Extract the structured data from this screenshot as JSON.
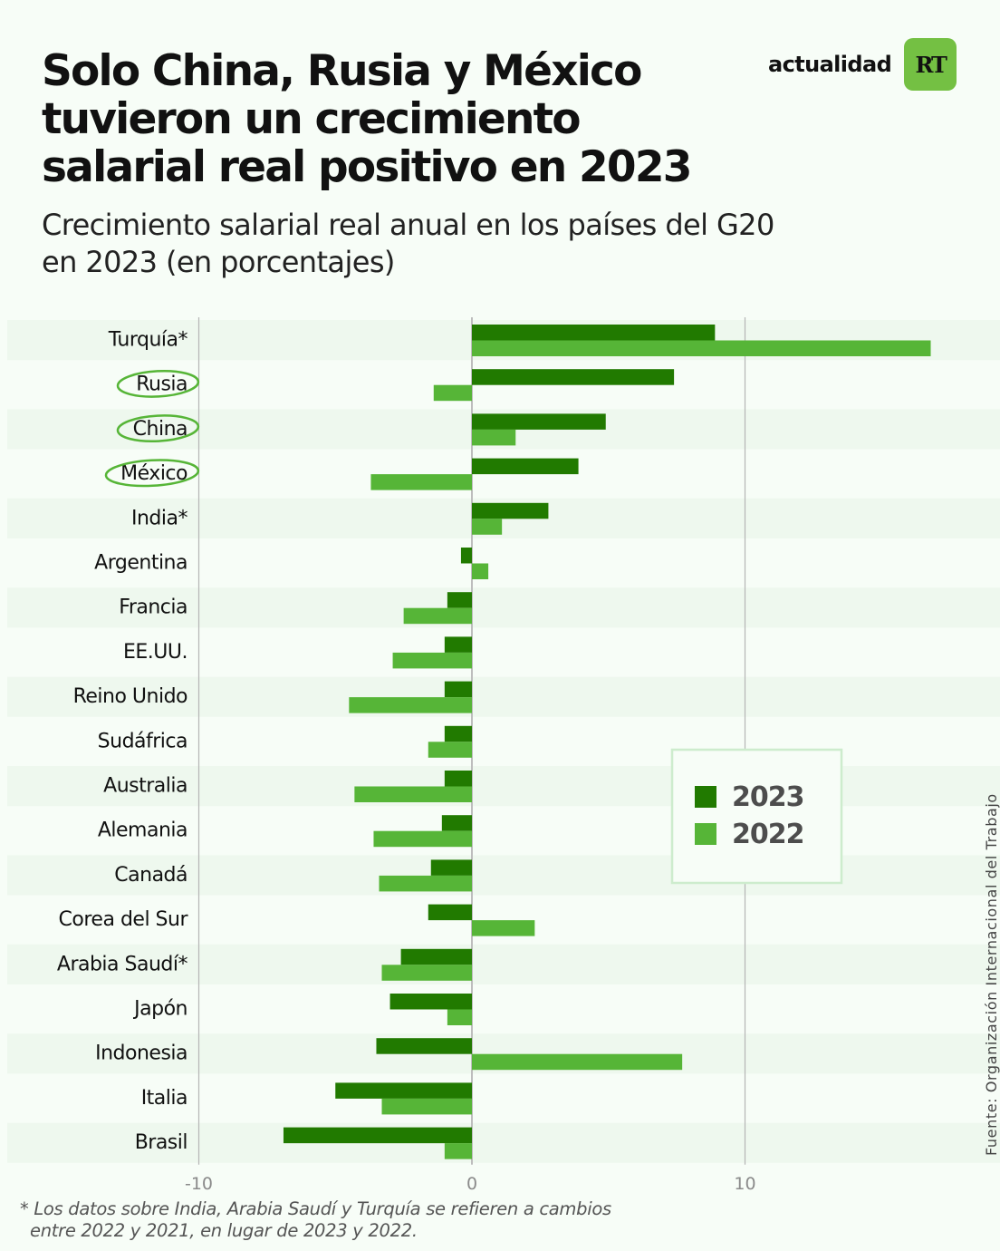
{
  "header": {
    "title": "Solo China, Rusia y México tuvieron un crecimiento salarial real positivo en 2023",
    "subtitle": "Crecimiento salarial real anual en los países del G20 en 2023 (en porcentajes)"
  },
  "brand": {
    "word": "actualidad",
    "logo_text": "RT",
    "logo_color": "#74c043"
  },
  "source": "Fuente: Organización Internacional del Trabajo",
  "footnote": {
    "line1": "* Los datos sobre India, Arabia Saudí y Turquía se refieren a cambios",
    "line2": "entre 2022 y 2021, en lugar de 2023 y 2022."
  },
  "chart_data": {
    "type": "bar",
    "orientation": "horizontal",
    "title": "Crecimiento salarial real anual en los países del G20 en 2023 (en porcentajes)",
    "xlabel": "",
    "ylabel": "",
    "xlim": [
      -10,
      17
    ],
    "xticks": [
      -10,
      0,
      10
    ],
    "xtick_labels": [
      "-10",
      "0",
      "10"
    ],
    "grid": true,
    "legend_position": "right",
    "categories": [
      "Turquía*",
      "Rusia",
      "China",
      "México",
      "India*",
      "Argentina",
      "Francia",
      "EE.UU.",
      "Reino Unido",
      "Sudáfrica",
      "Australia",
      "Alemania",
      "Canadá",
      "Corea del Sur",
      "Arabia Saudí*",
      "Japón",
      "Indonesia",
      "Italia",
      "Brasil"
    ],
    "highlighted": [
      "Rusia",
      "China",
      "México"
    ],
    "series": [
      {
        "name": "2023",
        "color": "#217a00",
        "values": [
          8.9,
          7.4,
          4.9,
          3.9,
          2.8,
          -0.4,
          -0.9,
          -1.0,
          -1.0,
          -1.0,
          -1.0,
          -1.1,
          -1.5,
          -1.6,
          -2.6,
          -3.0,
          -3.5,
          -5.0,
          -6.9
        ]
      },
      {
        "name": "2022",
        "color": "#56b537",
        "values": [
          16.8,
          -1.4,
          1.6,
          -3.7,
          1.1,
          0.6,
          -2.5,
          -2.9,
          -4.5,
          -1.6,
          -4.3,
          -3.6,
          -3.4,
          2.3,
          -3.3,
          -0.9,
          7.7,
          -3.3,
          -1.0
        ]
      }
    ]
  }
}
